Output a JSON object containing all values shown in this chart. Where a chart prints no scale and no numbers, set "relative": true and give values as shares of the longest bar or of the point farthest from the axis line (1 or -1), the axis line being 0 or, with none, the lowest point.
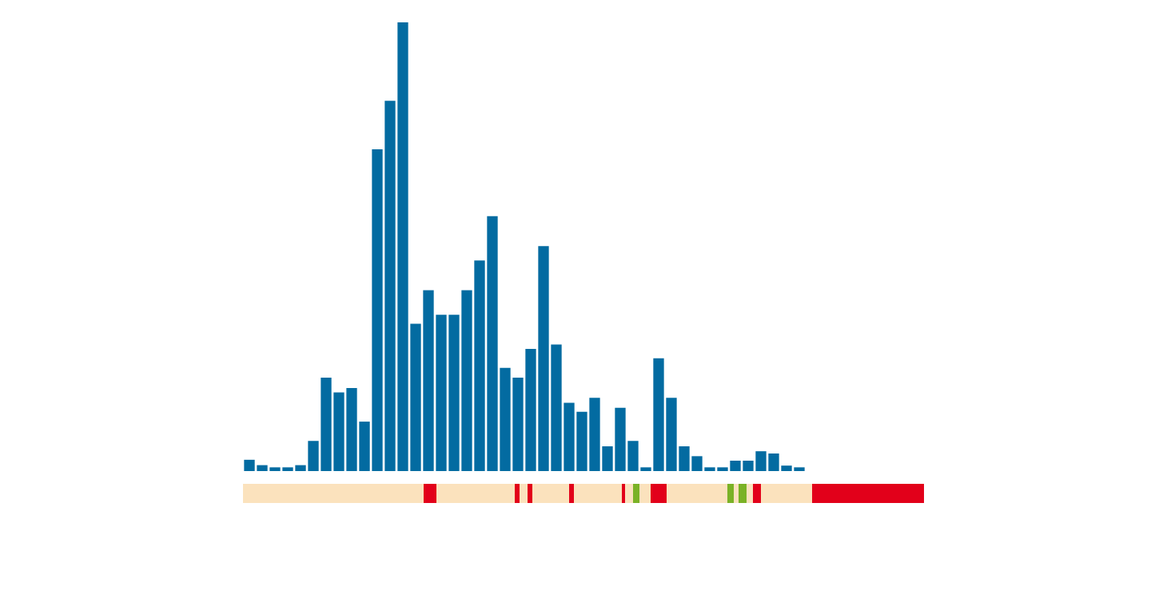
{
  "chart_data": {
    "type": "bar",
    "relative": true,
    "tick_labels": false,
    "legend": false,
    "color": "#036ba1",
    "categories": [
      null,
      null,
      null,
      null,
      null,
      null,
      null,
      null,
      null,
      null,
      null,
      null,
      null,
      null,
      null,
      null,
      null,
      null,
      null,
      null,
      null,
      null,
      null,
      null,
      null,
      null,
      null,
      null,
      null,
      null,
      null,
      null,
      null,
      null,
      null,
      null,
      null,
      null,
      null,
      null,
      null,
      null,
      null,
      null
    ],
    "values": [
      0.024,
      0.012,
      0,
      0,
      0.012,
      0.066,
      0.207,
      0.174,
      0.184,
      0.109,
      0.716,
      0.824,
      1,
      0.327,
      0.402,
      0.347,
      0.347,
      0.402,
      0.468,
      0.567,
      0.229,
      0.207,
      0.271,
      0.5,
      0.281,
      0.151,
      0.131,
      0.162,
      0.054,
      0.14,
      0.066,
      0,
      0.25,
      0.162,
      0.054,
      0.032,
      0,
      0,
      0.022,
      0.022,
      0.043,
      0.038,
      0.011,
      0
    ]
  }
}
